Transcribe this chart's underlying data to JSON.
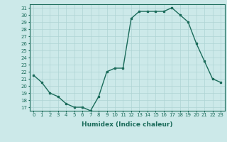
{
  "x": [
    0,
    1,
    2,
    3,
    4,
    5,
    6,
    7,
    8,
    9,
    10,
    11,
    12,
    13,
    14,
    15,
    16,
    17,
    18,
    19,
    20,
    21,
    22,
    23
  ],
  "y": [
    21.5,
    20.5,
    19.0,
    18.5,
    17.5,
    17.0,
    17.0,
    16.5,
    18.5,
    22.0,
    22.5,
    22.5,
    29.5,
    30.5,
    30.5,
    30.5,
    30.5,
    31.0,
    30.0,
    29.0,
    26.0,
    23.5,
    21.0,
    20.5
  ],
  "line_color": "#1a6b5a",
  "marker": "s",
  "markersize": 2,
  "linewidth": 1.0,
  "xlabel": "Humidex (Indice chaleur)",
  "xlim": [
    -0.5,
    23.5
  ],
  "ylim": [
    16.5,
    31.5
  ],
  "yticks": [
    17,
    18,
    19,
    20,
    21,
    22,
    23,
    24,
    25,
    26,
    27,
    28,
    29,
    30,
    31
  ],
  "xticks": [
    0,
    1,
    2,
    3,
    4,
    5,
    6,
    7,
    8,
    9,
    10,
    11,
    12,
    13,
    14,
    15,
    16,
    17,
    18,
    19,
    20,
    21,
    22,
    23
  ],
  "bg_color": "#cce9e9",
  "grid_color": "#aed4d4",
  "tick_color": "#1a6b5a",
  "label_color": "#1a6b5a",
  "tick_fontsize": 5.0,
  "label_fontsize": 6.5
}
